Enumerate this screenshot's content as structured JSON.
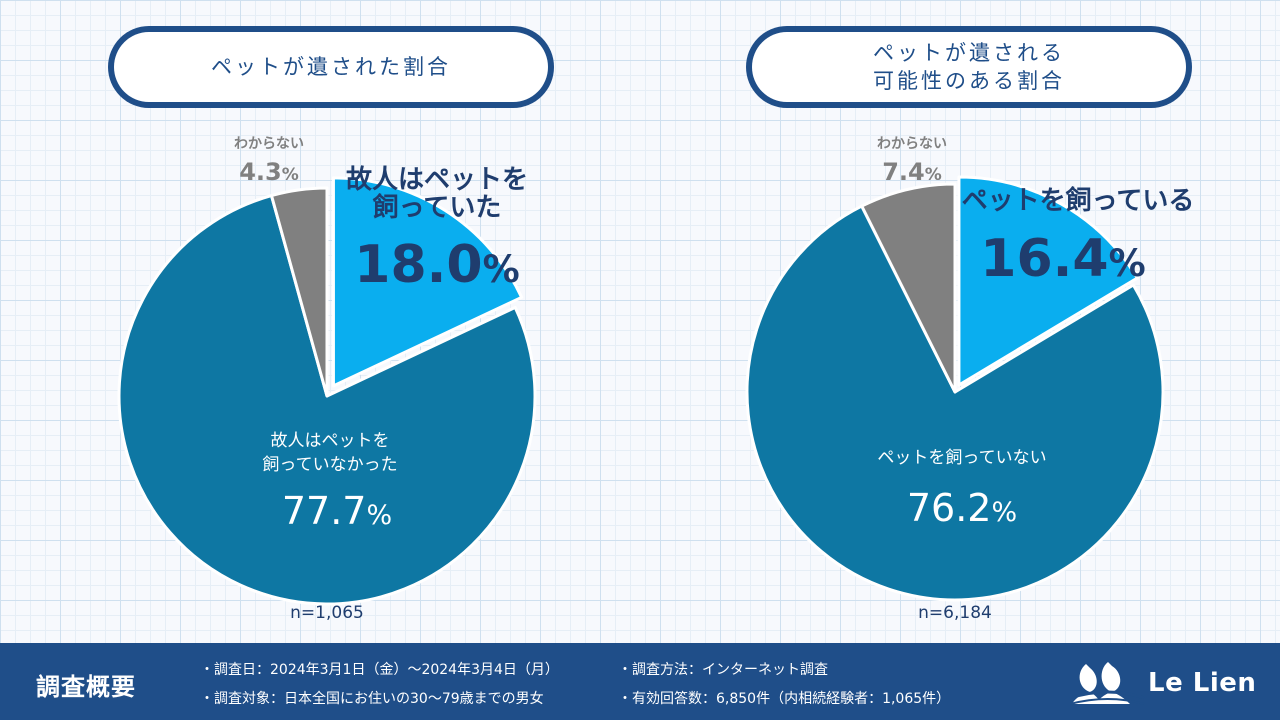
{
  "chart_data": [
    {
      "type": "pie",
      "title": "ペットが遺された割合",
      "sample": "n=1,065",
      "slices": [
        {
          "label_lines": [
            "故人はペットを",
            "飼っていた"
          ],
          "value": 18.0,
          "display": "18.0",
          "unit": "%",
          "color": "#0aaeef",
          "highlight": true
        },
        {
          "label_lines": [
            "故人はペットを",
            "飼っていなかった"
          ],
          "value": 77.7,
          "display": "77.7",
          "unit": "%",
          "color": "#0e77a3",
          "highlight": false
        },
        {
          "label_lines": [
            "わからない"
          ],
          "value": 4.3,
          "display": "4.3",
          "unit": "%",
          "color": "#808080",
          "highlight": false
        }
      ]
    },
    {
      "type": "pie",
      "title": "ペットが遺される 可能性のある割合",
      "title_lines": [
        "ペットが遺される",
        "可能性のある割合"
      ],
      "sample": "n=6,184",
      "slices": [
        {
          "label_lines": [
            "ペットを飼っている"
          ],
          "value": 16.4,
          "display": "16.4",
          "unit": "%",
          "color": "#0aaeef",
          "highlight": true
        },
        {
          "label_lines": [
            "ペットを飼っていない"
          ],
          "value": 76.2,
          "display": "76.2",
          "unit": "%",
          "color": "#0e77a3",
          "highlight": false
        },
        {
          "label_lines": [
            "わからない"
          ],
          "value": 7.4,
          "display": "7.4",
          "unit": "%",
          "color": "#808080",
          "highlight": false
        }
      ]
    }
  ],
  "footer": {
    "title": "調査概要",
    "date": "・調査日：2024年3月1日（金）～2024年3月4日（月）",
    "target": "・調査対象：日本全国にお住いの30～79歳までの男女",
    "method": "・調査方法：インターネット調査",
    "responses": "・有効回答数：6,850件（内相続経験者：1,065件）",
    "brand": "Le Lien"
  },
  "colors": {
    "navy": "#1f4e89",
    "dark_text": "#1f3d6e",
    "grey_text": "#808080"
  }
}
